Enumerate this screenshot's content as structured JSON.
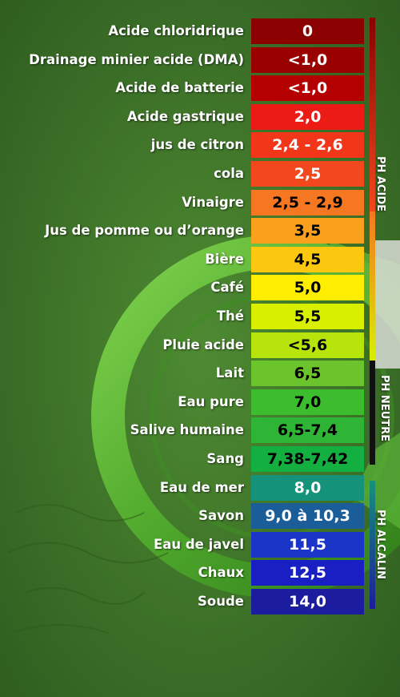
{
  "rows": [
    {
      "label": "Acide chloridrique",
      "value": "0",
      "color": "#8b0000",
      "text": "light"
    },
    {
      "label": "Drainage minier acide (DMA)",
      "value": "<1,0",
      "color": "#990000",
      "text": "light"
    },
    {
      "label": "Acide de batterie",
      "value": "<1,0",
      "color": "#b40000",
      "text": "light"
    },
    {
      "label": "Acide gastrique",
      "value": "2,0",
      "color": "#ec1b16",
      "text": "light"
    },
    {
      "label": "jus de citron",
      "value": "2,4 - 2,6",
      "color": "#f2361a",
      "text": "light"
    },
    {
      "label": "cola",
      "value": "2,5",
      "color": "#f3481e",
      "text": "light"
    },
    {
      "label": "Vinaigre",
      "value": "2,5 - 2,9",
      "color": "#f57722",
      "text": "dark"
    },
    {
      "label": "Jus de pomme ou d’orange",
      "value": "3,5",
      "color": "#f9a11c",
      "text": "dark"
    },
    {
      "label": "Bière",
      "value": "4,5",
      "color": "#fcc711",
      "text": "dark"
    },
    {
      "label": "Café",
      "value": "5,0",
      "color": "#ffee00",
      "text": "dark"
    },
    {
      "label": "Thé",
      "value": "5,5",
      "color": "#d8ef00",
      "text": "dark"
    },
    {
      "label": "Pluie acide",
      "value": "<5,6",
      "color": "#b6e40b",
      "text": "dark"
    },
    {
      "label": "Lait",
      "value": "6,5",
      "color": "#6cc42c",
      "text": "dark"
    },
    {
      "label": "Eau pure",
      "value": "7,0",
      "color": "#3cbd2e",
      "text": "dark"
    },
    {
      "label": "Salive humaine",
      "value": "6,5-7,4",
      "color": "#2fb535",
      "text": "dark"
    },
    {
      "label": "Sang",
      "value": "7,38-7,42",
      "color": "#13b041",
      "text": "dark"
    },
    {
      "label": "Eau de mer",
      "value": "8,0",
      "color": "#14937a",
      "text": "light"
    },
    {
      "label": "Savon",
      "value": "9,0 à 10,3",
      "color": "#1a5d99",
      "text": "light"
    },
    {
      "label": "Eau de javel",
      "value": "11,5",
      "color": "#1c35c9",
      "text": "light"
    },
    {
      "label": "Chaux",
      "value": "12,5",
      "color": "#1a1fc3",
      "text": "light"
    },
    {
      "label": "Soude",
      "value": "14,0",
      "color": "#1c1c9e",
      "text": "light"
    }
  ],
  "zones": {
    "acide": "PH ACIDE",
    "neutre": "PH NEUTRE",
    "alcalin": "PH ALCALIN"
  },
  "colors": {
    "background": "#3f7a2c",
    "ring": "#5fb83a"
  }
}
